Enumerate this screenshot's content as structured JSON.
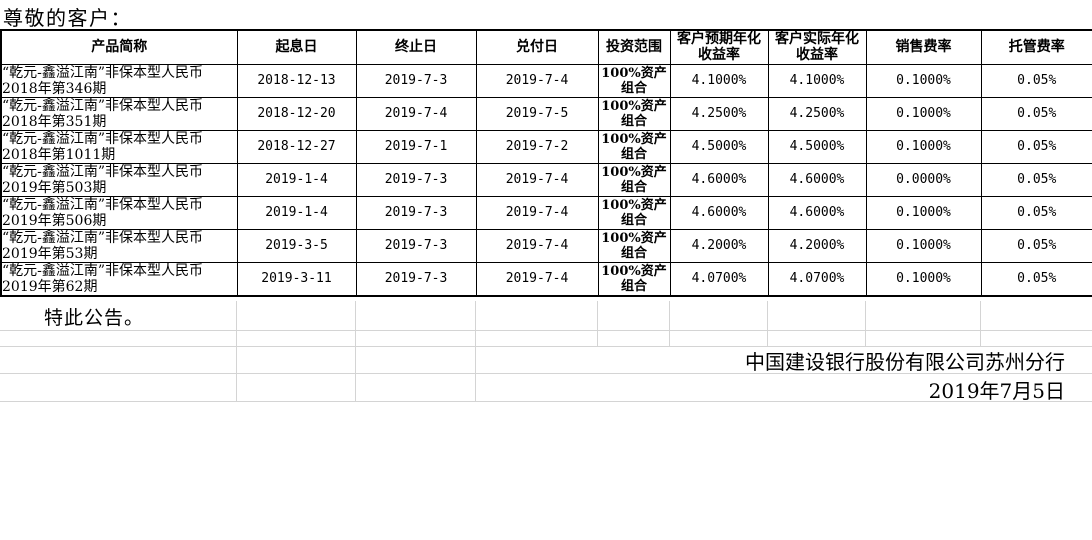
{
  "title": "尊敬的客户：",
  "table": {
    "headers": [
      "产品简称",
      "起息日",
      "终止日",
      "兑付日",
      "投资范围",
      "客户预期年化\n收益率",
      "客户实际年化\n收益率",
      "销售费率",
      "托管费率"
    ],
    "rows": [
      {
        "product": "“乾元-鑫溢江南”非保本型人民币\n2018年第346期",
        "value_date": "2018-12-13",
        "end_date": "2019-7-3",
        "payment_date": "2019-7-4",
        "scope": "100%资产\n组合",
        "expected_yield": "4.1000%",
        "actual_yield": "4.1000%",
        "sales_fee": "0.1000%",
        "custody_fee": "0.05%"
      },
      {
        "product": "“乾元-鑫溢江南”非保本型人民币\n2018年第351期",
        "value_date": "2018-12-20",
        "end_date": "2019-7-4",
        "payment_date": "2019-7-5",
        "scope": "100%资产\n组合",
        "expected_yield": "4.2500%",
        "actual_yield": "4.2500%",
        "sales_fee": "0.1000%",
        "custody_fee": "0.05%"
      },
      {
        "product": "“乾元-鑫溢江南”非保本型人民币\n2018年第1011期",
        "value_date": "2018-12-27",
        "end_date": "2019-7-1",
        "payment_date": "2019-7-2",
        "scope": "100%资产\n组合",
        "expected_yield": "4.5000%",
        "actual_yield": "4.5000%",
        "sales_fee": "0.1000%",
        "custody_fee": "0.05%"
      },
      {
        "product": "“乾元-鑫溢江南”非保本型人民币\n2019年第503期",
        "value_date": "2019-1-4",
        "end_date": "2019-7-3",
        "payment_date": "2019-7-4",
        "scope": "100%资产\n组合",
        "expected_yield": "4.6000%",
        "actual_yield": "4.6000%",
        "sales_fee": "0.0000%",
        "custody_fee": "0.05%"
      },
      {
        "product": "“乾元-鑫溢江南”非保本型人民币\n2019年第506期",
        "value_date": "2019-1-4",
        "end_date": "2019-7-3",
        "payment_date": "2019-7-4",
        "scope": "100%资产\n组合",
        "expected_yield": "4.6000%",
        "actual_yield": "4.6000%",
        "sales_fee": "0.1000%",
        "custody_fee": "0.05%"
      },
      {
        "product": "“乾元-鑫溢江南”非保本型人民币\n2019年第53期",
        "value_date": "2019-3-5",
        "end_date": "2019-7-3",
        "payment_date": "2019-7-4",
        "scope": "100%资产\n组合",
        "expected_yield": "4.2000%",
        "actual_yield": "4.2000%",
        "sales_fee": "0.1000%",
        "custody_fee": "0.05%"
      },
      {
        "product": "“乾元-鑫溢江南”非保本型人民币\n2019年第62期",
        "value_date": "2019-3-11",
        "end_date": "2019-7-3",
        "payment_date": "2019-7-4",
        "scope": "100%资产\n组合",
        "expected_yield": "4.0700%",
        "actual_yield": "4.0700%",
        "sales_fee": "0.1000%",
        "custody_fee": "0.05%"
      }
    ]
  },
  "notice": "特此公告。",
  "signature": {
    "bank": "中国建设银行股份有限公司苏州分行",
    "date": "2019年7月5日"
  }
}
